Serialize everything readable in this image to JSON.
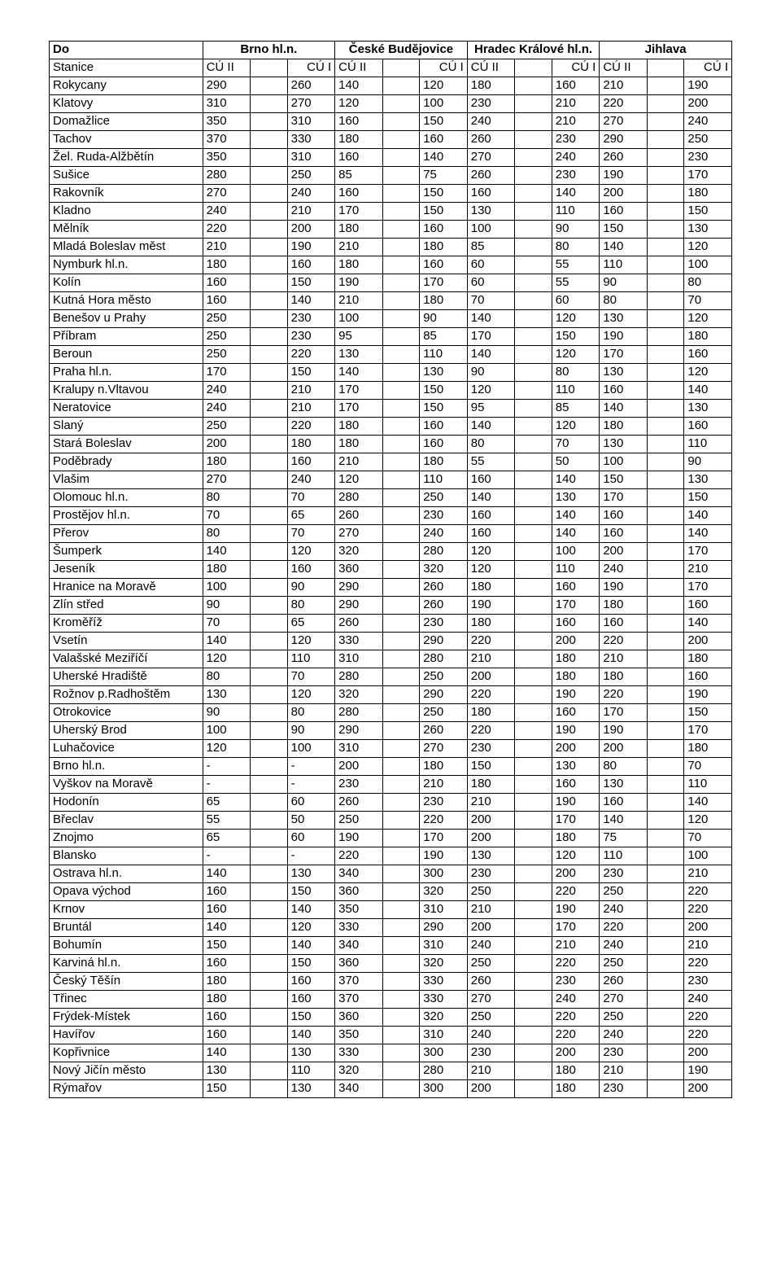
{
  "header": {
    "do": "Do",
    "stanice": "Stanice",
    "cities": [
      "Brno hl.n.",
      "České Budějovice",
      "Hradec Králové hl.n.",
      "Jihlava"
    ],
    "sub_cu2": "CÚ II",
    "sub_cu1": "CÚ I"
  },
  "style": {
    "font_family": "Arial",
    "font_size_pt": 11,
    "border_color": "#000000",
    "background_color": "#ffffff",
    "text_color": "#000000"
  },
  "rows": [
    {
      "s": "Rokycany",
      "v": [
        "290",
        "260",
        "140",
        "120",
        "180",
        "160",
        "210",
        "190"
      ]
    },
    {
      "s": "Klatovy",
      "v": [
        "310",
        "270",
        "120",
        "100",
        "230",
        "210",
        "220",
        "200"
      ]
    },
    {
      "s": "Domažlice",
      "v": [
        "350",
        "310",
        "160",
        "150",
        "240",
        "210",
        "270",
        "240"
      ]
    },
    {
      "s": "Tachov",
      "v": [
        "370",
        "330",
        "180",
        "160",
        "260",
        "230",
        "290",
        "250"
      ]
    },
    {
      "s": "Žel. Ruda-Alžbětín",
      "v": [
        "350",
        "310",
        "160",
        "140",
        "270",
        "240",
        "260",
        "230"
      ]
    },
    {
      "s": "Sušice",
      "v": [
        "280",
        "250",
        "85",
        "75",
        "260",
        "230",
        "190",
        "170"
      ]
    },
    {
      "s": "Rakovník",
      "v": [
        "270",
        "240",
        "160",
        "150",
        "160",
        "140",
        "200",
        "180"
      ]
    },
    {
      "s": "Kladno",
      "v": [
        "240",
        "210",
        "170",
        "150",
        "130",
        "110",
        "160",
        "150"
      ]
    },
    {
      "s": "Mělník",
      "v": [
        "220",
        "200",
        "180",
        "160",
        "100",
        "90",
        "150",
        "130"
      ]
    },
    {
      "s": "Mladá Boleslav měst",
      "v": [
        "210",
        "190",
        "210",
        "180",
        "85",
        "80",
        "140",
        "120"
      ]
    },
    {
      "s": "Nymburk hl.n.",
      "v": [
        "180",
        "160",
        "180",
        "160",
        "60",
        "55",
        "110",
        "100"
      ]
    },
    {
      "s": "Kolín",
      "v": [
        "160",
        "150",
        "190",
        "170",
        "60",
        "55",
        "90",
        "80"
      ]
    },
    {
      "s": "Kutná Hora město",
      "v": [
        "160",
        "140",
        "210",
        "180",
        "70",
        "60",
        "80",
        "70"
      ]
    },
    {
      "s": "Benešov u Prahy",
      "v": [
        "250",
        "230",
        "100",
        "90",
        "140",
        "120",
        "130",
        "120"
      ]
    },
    {
      "s": "Příbram",
      "v": [
        "250",
        "230",
        "95",
        "85",
        "170",
        "150",
        "190",
        "180"
      ]
    },
    {
      "s": "Beroun",
      "v": [
        "250",
        "220",
        "130",
        "110",
        "140",
        "120",
        "170",
        "160"
      ]
    },
    {
      "s": "Praha hl.n.",
      "v": [
        "170",
        "150",
        "140",
        "130",
        "90",
        "80",
        "130",
        "120"
      ]
    },
    {
      "s": "Kralupy n.Vltavou",
      "v": [
        "240",
        "210",
        "170",
        "150",
        "120",
        "110",
        "160",
        "140"
      ]
    },
    {
      "s": "Neratovice",
      "v": [
        "240",
        "210",
        "170",
        "150",
        "95",
        "85",
        "140",
        "130"
      ]
    },
    {
      "s": "Slaný",
      "v": [
        "250",
        "220",
        "180",
        "160",
        "140",
        "120",
        "180",
        "160"
      ]
    },
    {
      "s": "Stará Boleslav",
      "v": [
        "200",
        "180",
        "180",
        "160",
        "80",
        "70",
        "130",
        "110"
      ]
    },
    {
      "s": "Poděbrady",
      "v": [
        "180",
        "160",
        "210",
        "180",
        "55",
        "50",
        "100",
        "90"
      ]
    },
    {
      "s": "Vlašim",
      "v": [
        "270",
        "240",
        "120",
        "110",
        "160",
        "140",
        "150",
        "130"
      ]
    },
    {
      "s": "Olomouc hl.n.",
      "v": [
        "80",
        "70",
        "280",
        "250",
        "140",
        "130",
        "170",
        "150"
      ]
    },
    {
      "s": "Prostějov hl.n.",
      "v": [
        "70",
        "65",
        "260",
        "230",
        "160",
        "140",
        "160",
        "140"
      ]
    },
    {
      "s": "Přerov",
      "v": [
        "80",
        "70",
        "270",
        "240",
        "160",
        "140",
        "160",
        "140"
      ]
    },
    {
      "s": "Šumperk",
      "v": [
        "140",
        "120",
        "320",
        "280",
        "120",
        "100",
        "200",
        "170"
      ]
    },
    {
      "s": "Jeseník",
      "v": [
        "180",
        "160",
        "360",
        "320",
        "120",
        "110",
        "240",
        "210"
      ]
    },
    {
      "s": "Hranice na Moravě",
      "v": [
        "100",
        "90",
        "290",
        "260",
        "180",
        "160",
        "190",
        "170"
      ]
    },
    {
      "s": "Zlín střed",
      "v": [
        "90",
        "80",
        "290",
        "260",
        "190",
        "170",
        "180",
        "160"
      ]
    },
    {
      "s": "Kroměříž",
      "v": [
        "70",
        "65",
        "260",
        "230",
        "180",
        "160",
        "160",
        "140"
      ]
    },
    {
      "s": "Vsetín",
      "v": [
        "140",
        "120",
        "330",
        "290",
        "220",
        "200",
        "220",
        "200"
      ]
    },
    {
      "s": "Valašské Meziříčí",
      "v": [
        "120",
        "110",
        "310",
        "280",
        "210",
        "180",
        "210",
        "180"
      ]
    },
    {
      "s": "Uherské Hradiště",
      "v": [
        "80",
        "70",
        "280",
        "250",
        "200",
        "180",
        "180",
        "160"
      ]
    },
    {
      "s": "Rožnov p.Radhoštěm",
      "v": [
        "130",
        "120",
        "320",
        "290",
        "220",
        "190",
        "220",
        "190"
      ]
    },
    {
      "s": "Otrokovice",
      "v": [
        "90",
        "80",
        "280",
        "250",
        "180",
        "160",
        "170",
        "150"
      ]
    },
    {
      "s": "Uherský Brod",
      "v": [
        "100",
        "90",
        "290",
        "260",
        "220",
        "190",
        "190",
        "170"
      ]
    },
    {
      "s": "Luhačovice",
      "v": [
        "120",
        "100",
        "310",
        "270",
        "230",
        "200",
        "200",
        "180"
      ]
    },
    {
      "s": "Brno hl.n.",
      "v": [
        "-",
        "-",
        "200",
        "180",
        "150",
        "130",
        "80",
        "70"
      ]
    },
    {
      "s": "Vyškov na Moravě",
      "v": [
        "-",
        "-",
        "230",
        "210",
        "180",
        "160",
        "130",
        "110"
      ]
    },
    {
      "s": "Hodonín",
      "v": [
        "65",
        "60",
        "260",
        "230",
        "210",
        "190",
        "160",
        "140"
      ]
    },
    {
      "s": "Břeclav",
      "v": [
        "55",
        "50",
        "250",
        "220",
        "200",
        "170",
        "140",
        "120"
      ]
    },
    {
      "s": "Znojmo",
      "v": [
        "65",
        "60",
        "190",
        "170",
        "200",
        "180",
        "75",
        "70"
      ]
    },
    {
      "s": "Blansko",
      "v": [
        "-",
        "-",
        "220",
        "190",
        "130",
        "120",
        "110",
        "100"
      ]
    },
    {
      "s": "Ostrava hl.n.",
      "v": [
        "140",
        "130",
        "340",
        "300",
        "230",
        "200",
        "230",
        "210"
      ]
    },
    {
      "s": "Opava východ",
      "v": [
        "160",
        "150",
        "360",
        "320",
        "250",
        "220",
        "250",
        "220"
      ]
    },
    {
      "s": "Krnov",
      "v": [
        "160",
        "140",
        "350",
        "310",
        "210",
        "190",
        "240",
        "220"
      ]
    },
    {
      "s": "Bruntál",
      "v": [
        "140",
        "120",
        "330",
        "290",
        "200",
        "170",
        "220",
        "200"
      ]
    },
    {
      "s": "Bohumín",
      "v": [
        "150",
        "140",
        "340",
        "310",
        "240",
        "210",
        "240",
        "210"
      ]
    },
    {
      "s": "Karviná hl.n.",
      "v": [
        "160",
        "150",
        "360",
        "320",
        "250",
        "220",
        "250",
        "220"
      ]
    },
    {
      "s": "Český Těšín",
      "v": [
        "180",
        "160",
        "370",
        "330",
        "260",
        "230",
        "260",
        "230"
      ]
    },
    {
      "s": "Třinec",
      "v": [
        "180",
        "160",
        "370",
        "330",
        "270",
        "240",
        "270",
        "240"
      ]
    },
    {
      "s": "Frýdek-Místek",
      "v": [
        "160",
        "150",
        "360",
        "320",
        "250",
        "220",
        "250",
        "220"
      ]
    },
    {
      "s": "Havířov",
      "v": [
        "160",
        "140",
        "350",
        "310",
        "240",
        "220",
        "240",
        "220"
      ]
    },
    {
      "s": "Kopřivnice",
      "v": [
        "140",
        "130",
        "330",
        "300",
        "230",
        "200",
        "230",
        "200"
      ]
    },
    {
      "s": "Nový Jičín město",
      "v": [
        "130",
        "110",
        "320",
        "280",
        "210",
        "180",
        "210",
        "190"
      ]
    },
    {
      "s": "Rýmařov",
      "v": [
        "150",
        "130",
        "340",
        "300",
        "200",
        "180",
        "230",
        "200"
      ]
    }
  ]
}
